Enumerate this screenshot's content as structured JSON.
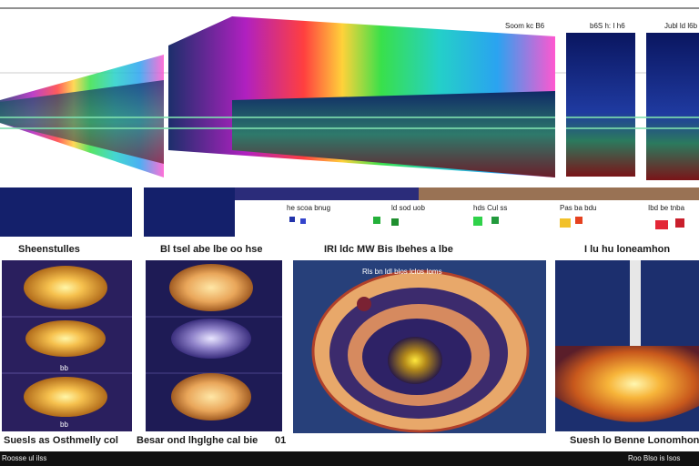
{
  "top": {
    "labels": [
      "Soom kc B6",
      "b6S h: I h6",
      "Jubl ld l6b"
    ]
  },
  "legend": {
    "rows": [
      "he scoa bnug",
      "ld sod uob",
      "hds Cul ss",
      "Pas ba bdu",
      "Ibd be tnba"
    ]
  },
  "captions": {
    "left": "Sheenstulles",
    "mid_left": "Bl tsel abe lbe oo hse",
    "center": "IRI ldc MW Bis Ibehes  a lbe",
    "right": "I lu hu loneamhon",
    "center_inner": "Rls bn ldl blos lclos Ioms",
    "inner_small": [
      "bb",
      "bb"
    ]
  },
  "footer": {
    "left": "Suesls as Osthmelly col",
    "mid": "Besar ond lhglghe cal bie",
    "mid_num": "01",
    "right": "Suesh lo Benne Lonomhon"
  },
  "bottom_bar": {
    "left": "Roosse ul ilss",
    "right": "Roo Blso is Isos"
  },
  "colors": {
    "navy": "#14206b",
    "warm_gold": "#f0b95a",
    "orange": "#e07a28",
    "accent_purple": "#7a2fa3"
  }
}
